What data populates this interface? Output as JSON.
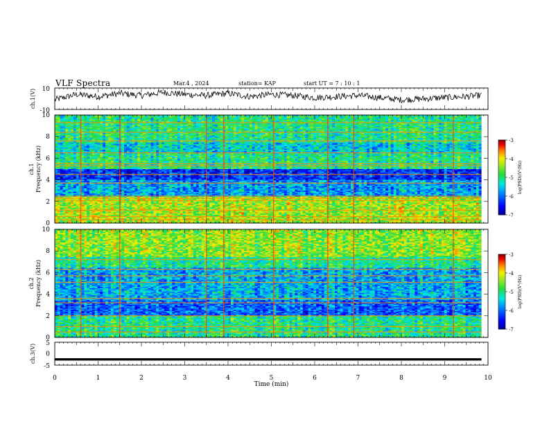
{
  "header": {
    "title": "VLF Spectra",
    "date": "Mar.4 , 2024",
    "station": "station= KAP",
    "start": "start  UT =   7 : 10 : 1"
  },
  "chart_data": [
    {
      "type": "line",
      "panel": "ch1-waveform",
      "ylabel": "ch.1(V)",
      "xlim": [
        0,
        9.85
      ],
      "ylim": [
        -10,
        10
      ],
      "y_ticks": [
        "10",
        "-10"
      ],
      "x_ticks": [
        0,
        1,
        2,
        3,
        4,
        5,
        6,
        7,
        8,
        9,
        10
      ],
      "series": [
        {
          "values_note_free": true,
          "x": [
            0,
            0.5,
            1,
            1.5,
            2,
            2.5,
            3,
            3.5,
            4,
            4.5,
            5,
            5.5,
            6,
            6.5,
            7,
            7.5,
            8,
            8.5,
            9,
            9.5,
            9.8
          ],
          "y": [
            -1,
            4,
            2,
            5,
            3,
            6,
            4,
            3,
            5,
            2,
            4,
            3,
            1,
            2,
            3,
            1,
            -1,
            0,
            1,
            2,
            3
          ]
        }
      ]
    },
    {
      "type": "heatmap",
      "panel": "ch1-spectrogram",
      "ylabel": "ch.1\nFrequency (kHz)",
      "xlim": [
        0,
        9.85
      ],
      "ylim": [
        0,
        10
      ],
      "y_ticks": [
        0,
        2,
        4,
        6,
        8,
        10
      ],
      "colorbar": {
        "label": "log(PSD)(V²/Hz)",
        "range": [
          -7,
          -3
        ],
        "ticks": [
          "-3",
          "-4",
          "-5",
          "-6",
          "-7"
        ]
      },
      "bands_khz": [
        {
          "from": 0,
          "to": 2.5,
          "level": -4.3
        },
        {
          "from": 2.5,
          "to": 4.0,
          "level": -5.7
        },
        {
          "from": 4.0,
          "to": 5.0,
          "level": -6.3
        },
        {
          "from": 5.0,
          "to": 6.5,
          "level": -5.0
        },
        {
          "from": 6.5,
          "to": 7.5,
          "level": -5.4
        },
        {
          "from": 7.5,
          "to": 10,
          "level": -5.0
        }
      ],
      "lines_khz": [
        0.3,
        0.6,
        1.2,
        2.1,
        2.3,
        2.5,
        3.7,
        4.5,
        5.3,
        5.5,
        6.5,
        7.6,
        8.4,
        9.3
      ],
      "bursts_min": [
        0.6,
        1.5,
        3.5,
        3.9,
        5.05,
        6.3,
        6.9,
        9.2
      ]
    },
    {
      "type": "heatmap",
      "panel": "ch2-spectrogram",
      "ylabel": "ch.2\nFrequency (kHz)",
      "xlim": [
        0,
        9.85
      ],
      "ylim": [
        0,
        10
      ],
      "y_ticks": [
        0,
        2,
        4,
        6,
        8,
        10
      ],
      "colorbar": {
        "label": "log(PSD)(V²/Hz)",
        "range": [
          -7,
          -3
        ],
        "ticks": [
          "-3",
          "-4",
          "-5",
          "-6",
          "-7"
        ]
      },
      "bands_khz": [
        {
          "from": 0,
          "to": 2.0,
          "level": -5.0
        },
        {
          "from": 2.0,
          "to": 3.5,
          "level": -6.0
        },
        {
          "from": 3.5,
          "to": 6.5,
          "level": -5.6
        },
        {
          "from": 6.5,
          "to": 7.5,
          "level": -5.0
        },
        {
          "from": 7.5,
          "to": 10,
          "level": -4.4
        }
      ],
      "lines_khz": [
        0.5,
        1.0,
        2.0,
        3.2,
        3.6,
        5.1,
        5.7,
        6.3,
        7.2
      ],
      "bursts_min": [
        0.6,
        1.5,
        3.5,
        3.9,
        5.05,
        6.3,
        6.9,
        9.2
      ]
    },
    {
      "type": "line",
      "panel": "ch3-waveform",
      "ylabel": "ch.3(V)",
      "xlabel": "Time  (min)",
      "xlim": [
        0,
        9.85
      ],
      "ylim": [
        -5,
        5
      ],
      "y_ticks": [
        "5",
        "0",
        "-5"
      ],
      "x_ticks": [
        0,
        1,
        2,
        3,
        4,
        5,
        6,
        7,
        8,
        9,
        10
      ],
      "series": [
        {
          "x": [
            0,
            9.85
          ],
          "y": [
            -2.5,
            -2.5
          ],
          "band_halfwidth": 0.5
        }
      ]
    }
  ]
}
